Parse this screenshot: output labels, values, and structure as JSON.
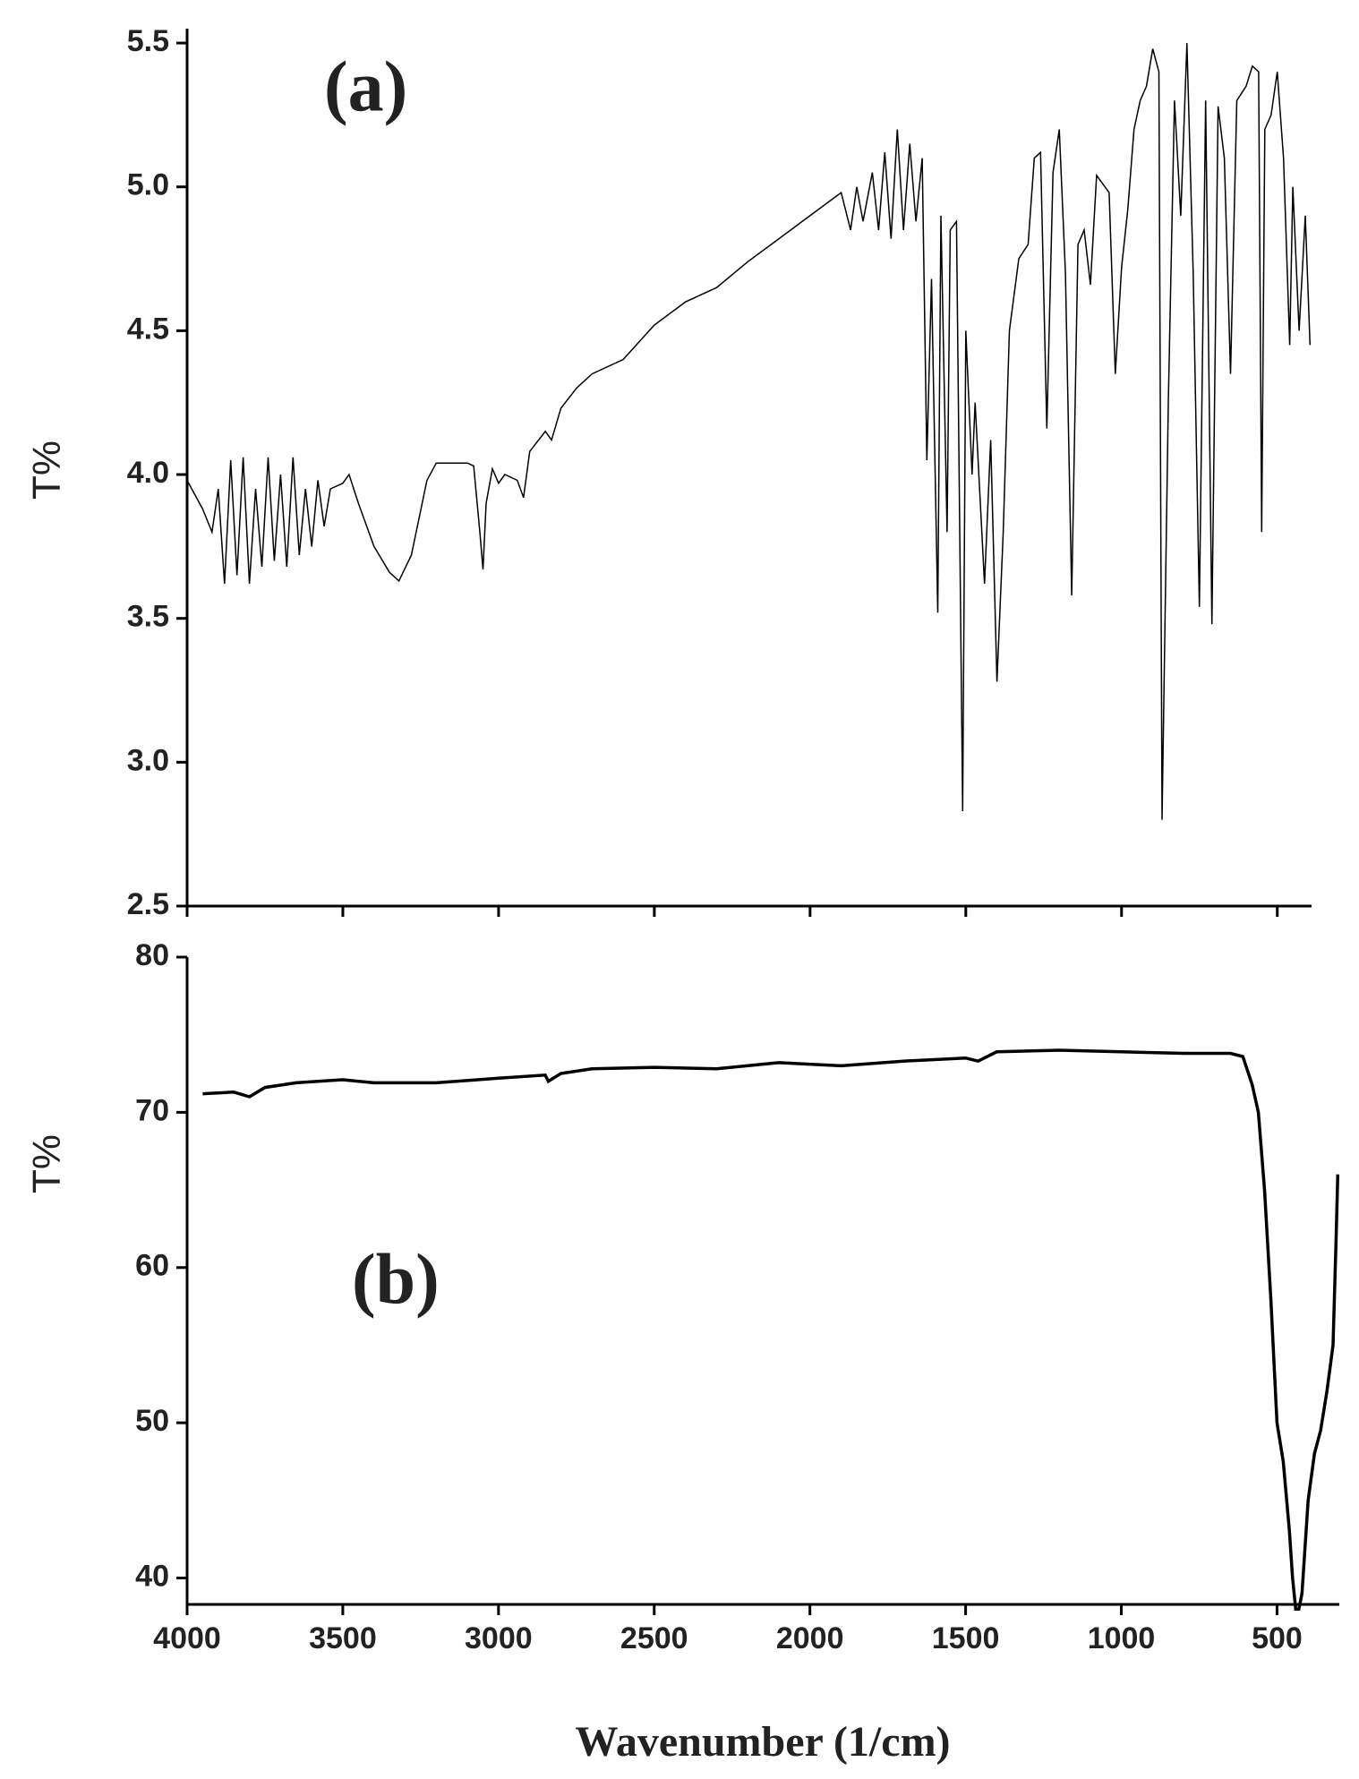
{
  "chart_data": [
    {
      "type": "line",
      "annotation": "(a)",
      "y_label": "T%",
      "xlim": [
        4000,
        390
      ],
      "ylim": [
        2.5,
        5.55
      ],
      "yticks": [
        2.5,
        {
          "value": 3,
          "label": "3.0"
        },
        3.5,
        {
          "value": 4,
          "label": "4.0"
        },
        4.5,
        {
          "value": 5,
          "label": "5.0"
        },
        5.5
      ],
      "x": [
        4000,
        3950,
        3920,
        3900,
        3880,
        3860,
        3840,
        3820,
        3800,
        3780,
        3760,
        3740,
        3720,
        3700,
        3680,
        3660,
        3640,
        3620,
        3600,
        3580,
        3560,
        3540,
        3500,
        3480,
        3450,
        3400,
        3350,
        3320,
        3280,
        3230,
        3200,
        3150,
        3100,
        3080,
        3060,
        3050,
        3040,
        3020,
        3000,
        2980,
        2940,
        2920,
        2900,
        2850,
        2830,
        2800,
        2750,
        2700,
        2600,
        2500,
        2400,
        2300,
        2200,
        2100,
        2000,
        1900,
        1870,
        1850,
        1830,
        1800,
        1780,
        1760,
        1740,
        1720,
        1700,
        1680,
        1660,
        1640,
        1625,
        1610,
        1590,
        1580,
        1560,
        1550,
        1530,
        1510,
        1500,
        1480,
        1470,
        1440,
        1420,
        1400,
        1380,
        1360,
        1330,
        1300,
        1280,
        1260,
        1240,
        1220,
        1200,
        1180,
        1160,
        1140,
        1120,
        1100,
        1080,
        1040,
        1020,
        1000,
        980,
        960,
        940,
        920,
        900,
        880,
        870,
        850,
        830,
        810,
        790,
        770,
        750,
        730,
        710,
        690,
        670,
        650,
        630,
        600,
        580,
        560,
        550,
        540,
        520,
        500,
        480,
        460,
        450,
        430,
        410,
        395
      ],
      "series": [
        {
          "color": "#000000",
          "values": [
            3.98,
            3.88,
            3.8,
            3.95,
            3.62,
            4.05,
            3.65,
            4.06,
            3.62,
            3.95,
            3.68,
            4.06,
            3.7,
            4.0,
            3.68,
            4.06,
            3.72,
            3.95,
            3.75,
            3.98,
            3.82,
            3.95,
            3.97,
            4.0,
            3.9,
            3.75,
            3.66,
            3.63,
            3.72,
            3.98,
            4.04,
            4.04,
            4.04,
            4.03,
            3.8,
            3.67,
            3.9,
            4.02,
            3.97,
            4.0,
            3.98,
            3.92,
            4.08,
            4.15,
            4.12,
            4.23,
            4.3,
            4.35,
            4.4,
            4.52,
            4.6,
            4.65,
            4.74,
            4.82,
            4.9,
            4.98,
            4.85,
            5.0,
            4.88,
            5.05,
            4.85,
            5.12,
            4.82,
            5.2,
            4.85,
            5.15,
            4.88,
            5.1,
            4.05,
            4.68,
            3.52,
            4.9,
            3.8,
            4.85,
            4.88,
            2.83,
            4.5,
            4.0,
            4.25,
            3.62,
            4.12,
            3.28,
            3.8,
            4.5,
            4.75,
            4.8,
            5.1,
            5.12,
            4.16,
            5.05,
            5.2,
            4.7,
            3.58,
            4.8,
            4.85,
            4.66,
            5.04,
            4.98,
            4.35,
            4.72,
            4.92,
            5.2,
            5.3,
            5.35,
            5.48,
            5.4,
            2.8,
            4.25,
            5.3,
            4.9,
            5.5,
            4.7,
            3.54,
            5.3,
            3.48,
            5.28,
            5.1,
            4.35,
            5.3,
            5.35,
            5.42,
            5.4,
            3.8,
            5.2,
            5.25,
            5.4,
            5.1,
            4.45,
            5.0,
            4.5,
            4.9,
            4.45
          ]
        }
      ]
    },
    {
      "type": "line",
      "annotation": "(b)",
      "y_label": "T%",
      "x_label": "Wavenumber (1/cm)",
      "xlim": [
        4000,
        300
      ],
      "ylim": [
        38.3,
        80
      ],
      "xticks": [
        4000,
        3500,
        3000,
        2500,
        2000,
        1500,
        1000,
        500
      ],
      "yticks": [
        40,
        50,
        60,
        70,
        80
      ],
      "x": [
        3950,
        3850,
        3800,
        3750,
        3650,
        3500,
        3400,
        3200,
        3000,
        2850,
        2840,
        2800,
        2700,
        2500,
        2300,
        2100,
        1900,
        1700,
        1500,
        1460,
        1400,
        1200,
        1000,
        800,
        650,
        610,
        580,
        560,
        540,
        520,
        500,
        480,
        460,
        450,
        440,
        430,
        420,
        400,
        380,
        360,
        340,
        320,
        310,
        305
      ],
      "series": [
        {
          "color": "#000000",
          "values": [
            71.2,
            71.3,
            71.0,
            71.6,
            71.9,
            72.1,
            71.9,
            71.9,
            72.2,
            72.4,
            72.0,
            72.5,
            72.8,
            72.9,
            72.8,
            73.2,
            73.0,
            73.3,
            73.5,
            73.3,
            73.9,
            74.0,
            73.9,
            73.8,
            73.8,
            73.6,
            71.8,
            70.0,
            65,
            58,
            50,
            47.5,
            43,
            40,
            38.0,
            38.0,
            39,
            45,
            48,
            49.5,
            52,
            55,
            62,
            66
          ]
        }
      ]
    }
  ]
}
